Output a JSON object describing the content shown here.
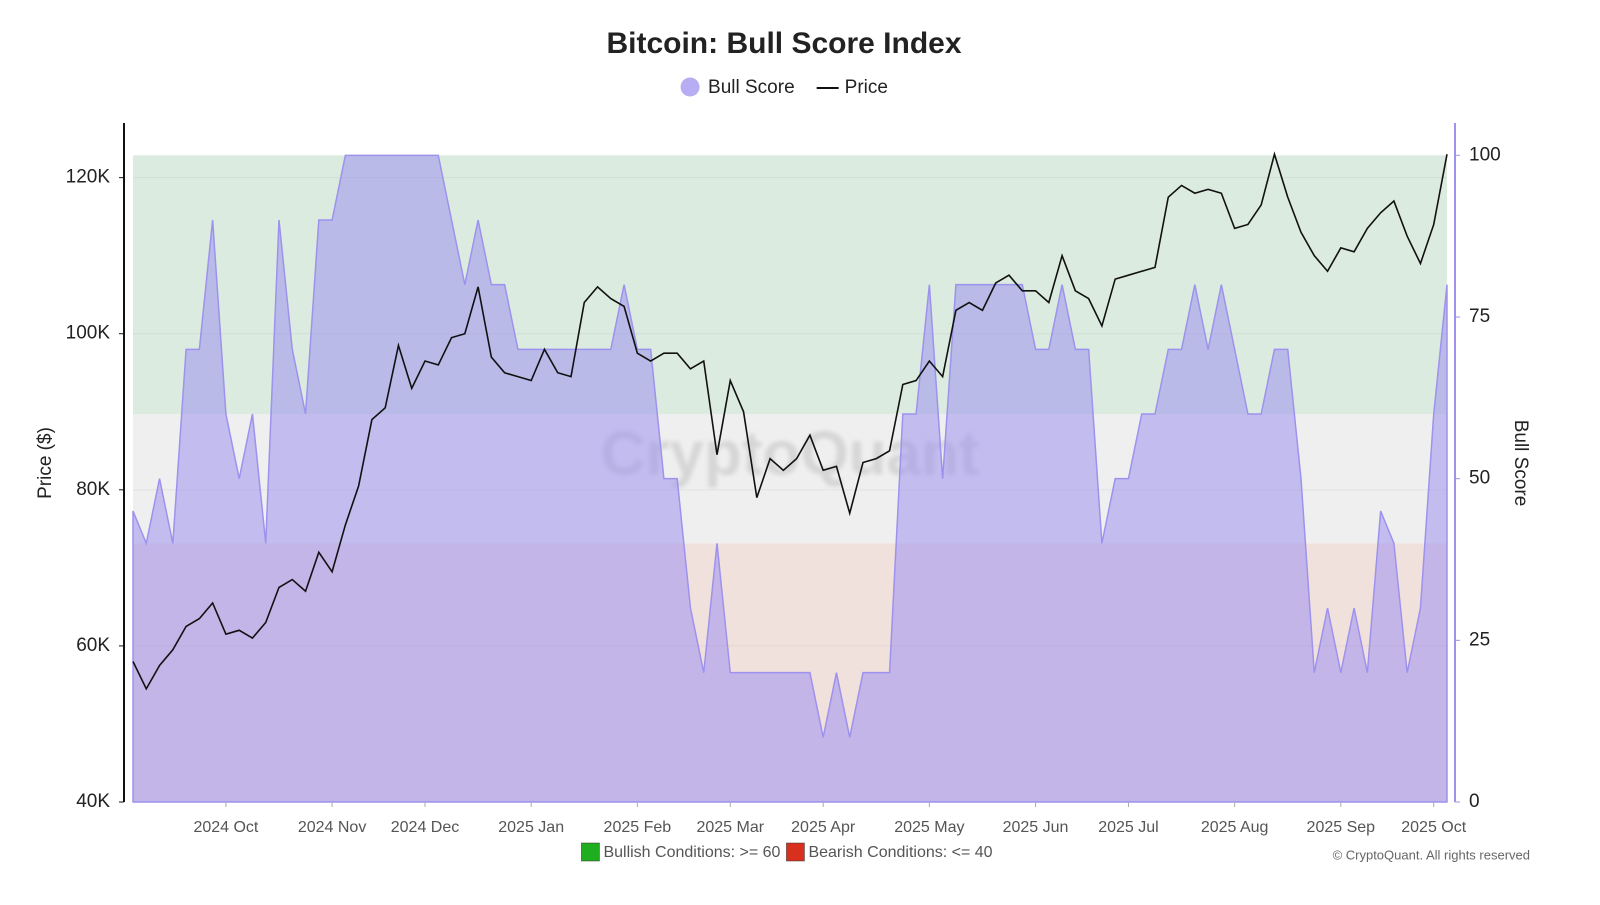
{
  "chart_data": {
    "type": "combo",
    "title": "Bitcoin: Bull Score Index",
    "watermark": "CryptoQuant",
    "credit": "© CryptoQuant. All rights reserved",
    "y_label": "Price ($)",
    "y2_label": "Bull Score",
    "ylim": [
      40000,
      127000
    ],
    "yticks": [
      {
        "value": 40000,
        "label": "40K"
      },
      {
        "value": 60000,
        "label": "60K"
      },
      {
        "value": 80000,
        "label": "80K"
      },
      {
        "value": 100000,
        "label": "100K"
      },
      {
        "value": 120000,
        "label": "120K"
      }
    ],
    "y2lim": [
      0,
      105
    ],
    "y2ticks": [
      0,
      25,
      50,
      75,
      100
    ],
    "grid": true,
    "legend": "top",
    "bands": [
      {
        "from": 60,
        "to": 100,
        "color": "#dcebe0",
        "label": "Bullish Conditions: >= 60",
        "swatch": "#1fae1f"
      },
      {
        "from": 40,
        "to": 60,
        "color": "#efefef"
      },
      {
        "from": 0,
        "to": 40,
        "color": "#f1e1dd",
        "label": "Bearish Conditions: <= 40",
        "swatch": "#d8301f"
      }
    ],
    "categories": [
      null,
      null,
      null,
      null,
      null,
      null,
      null,
      "2024 Oct",
      null,
      null,
      null,
      null,
      null,
      null,
      null,
      "2024 Nov",
      null,
      null,
      null,
      null,
      null,
      null,
      "2024 Dec",
      null,
      null,
      null,
      null,
      null,
      null,
      null,
      "2025 Jan",
      null,
      null,
      null,
      null,
      null,
      null,
      null,
      "2025 Feb",
      null,
      null,
      null,
      null,
      null,
      null,
      "2025 Mar",
      null,
      null,
      null,
      null,
      null,
      null,
      "2025 Apr",
      null,
      null,
      null,
      null,
      null,
      null,
      null,
      "2025 May",
      null,
      null,
      null,
      null,
      null,
      null,
      null,
      "2025 Jun",
      null,
      null,
      null,
      null,
      null,
      null,
      "2025 Jul",
      null,
      null,
      null,
      null,
      null,
      null,
      null,
      "2025 Aug",
      null,
      null,
      null,
      null,
      null,
      null,
      null,
      "2025 Sep",
      null,
      null,
      null,
      null,
      null,
      null,
      "2025 Oct",
      null
    ],
    "series": [
      {
        "name": "Bull Score",
        "type": "area",
        "axis": "y2",
        "color": "#9d92ee",
        "values": [
          45,
          40,
          50,
          40,
          70,
          70,
          90,
          60,
          50,
          60,
          40,
          90,
          70,
          60,
          90,
          90,
          100,
          100,
          100,
          100,
          100,
          100,
          100,
          100,
          90,
          80,
          90,
          80,
          80,
          70,
          70,
          70,
          70,
          70,
          70,
          70,
          70,
          80,
          70,
          70,
          50,
          50,
          30,
          20,
          40,
          20,
          20,
          20,
          20,
          20,
          20,
          20,
          10,
          20,
          10,
          20,
          20,
          20,
          60,
          60,
          80,
          50,
          80,
          80,
          80,
          80,
          80,
          80,
          70,
          70,
          80,
          70,
          70,
          40,
          50,
          50,
          60,
          60,
          70,
          70,
          80,
          70,
          80,
          70,
          60,
          60,
          70,
          70,
          50,
          20,
          30,
          20,
          30,
          20,
          45,
          40,
          20,
          30,
          60,
          80
        ]
      },
      {
        "name": "Price",
        "type": "line",
        "axis": "y",
        "color": "#111111",
        "values": [
          58000,
          54500,
          57500,
          59500,
          62500,
          63500,
          65500,
          61500,
          62000,
          61000,
          63000,
          67500,
          68500,
          67000,
          72000,
          69500,
          75500,
          80500,
          89000,
          90500,
          98500,
          93000,
          96500,
          96000,
          99500,
          100000,
          106000,
          97000,
          95000,
          94500,
          94000,
          98000,
          95000,
          94500,
          104000,
          106000,
          104500,
          103500,
          97500,
          96500,
          97500,
          97500,
          95500,
          96500,
          84500,
          94000,
          90000,
          79000,
          84000,
          82500,
          84000,
          87000,
          82500,
          83000,
          77000,
          83500,
          84000,
          85000,
          93500,
          94000,
          96500,
          94500,
          103000,
          104000,
          103000,
          106500,
          107500,
          105500,
          105500,
          104000,
          110000,
          105500,
          104500,
          101000,
          107000,
          107500,
          108000,
          108500,
          117500,
          119000,
          118000,
          118500,
          118000,
          113500,
          114000,
          116500,
          123000,
          117500,
          113000,
          110000,
          108000,
          111000,
          110500,
          113500,
          115500,
          117000,
          112500,
          109000,
          114000,
          123000
        ]
      }
    ]
  }
}
